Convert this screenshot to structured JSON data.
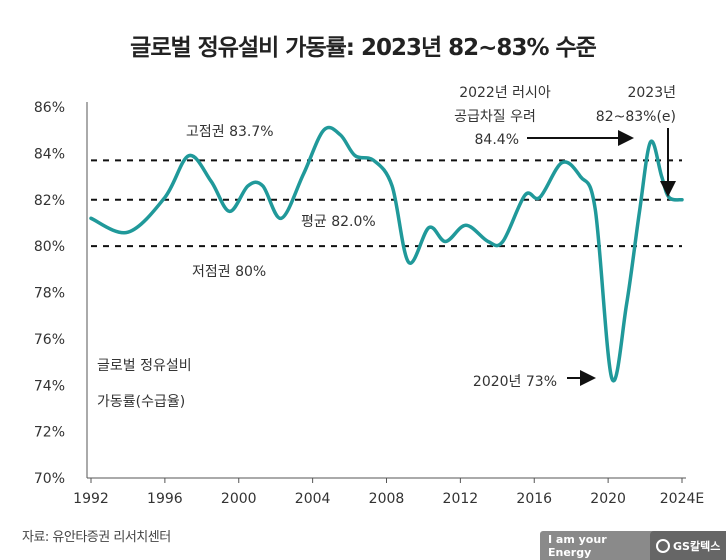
{
  "chart_data": {
    "type": "line",
    "title": "글로벌 정유설비 가동률: 2023년 82~83% 수준",
    "ylabel_lines": [
      "글로벌 정유설비",
      "가동률(수급율)"
    ],
    "xlim": [
      1992,
      2024
    ],
    "ylim": [
      70,
      86
    ],
    "x_ticks": [
      1992,
      1996,
      2000,
      2004,
      2008,
      2012,
      2016,
      2020,
      2024
    ],
    "x_tick_labels": [
      "1992",
      "1996",
      "2000",
      "2004",
      "2008",
      "2012",
      "2016",
      "2020",
      "2024E"
    ],
    "y_ticks": [
      70,
      72,
      74,
      76,
      78,
      80,
      82,
      84,
      86
    ],
    "y_tick_labels": [
      "70%",
      "72%",
      "74%",
      "76%",
      "78%",
      "80%",
      "82%",
      "84%",
      "86%"
    ],
    "grid": false,
    "line_color": "#20999a",
    "series": [
      {
        "x": [
          1992,
          1994,
          1996,
          1997.3,
          1998.5,
          1999.5,
          2000.5,
          2001.3,
          2002.3,
          2003.5,
          2004.6,
          2005.5,
          2006.3,
          2007.3,
          2008.3,
          2009.2,
          2010.3,
          2011.2,
          2012.3,
          2013.5,
          2014.3,
          2015.5,
          2016.3,
          2017.5,
          2018.5,
          2019.3,
          2020.2,
          2021.0,
          2021.7,
          2022.3,
          2022.9,
          2023.3,
          2024
        ],
        "y": [
          81.2,
          80.6,
          82.1,
          83.9,
          82.8,
          81.5,
          82.6,
          82.6,
          81.2,
          83.1,
          85.0,
          84.8,
          83.9,
          83.7,
          82.6,
          79.3,
          80.8,
          80.2,
          80.9,
          80.2,
          80.2,
          82.2,
          82.1,
          83.6,
          83.0,
          81.6,
          74.3,
          77.5,
          81.5,
          84.5,
          83.0,
          82.1,
          82.0
        ]
      }
    ],
    "reference_lines": [
      {
        "value": 83.7,
        "label": "고점권 83.7%"
      },
      {
        "value": 82.0,
        "label": "평균 82.0%"
      },
      {
        "value": 80.0,
        "label": "저점권 80%"
      }
    ],
    "annotations": [
      {
        "lines": [
          "2022년 러시아",
          "공급차질 우려",
          "84.4%"
        ]
      },
      {
        "lines": [
          "2023년",
          "82~83%(e)"
        ]
      },
      {
        "lines": [
          "2020년 73%"
        ]
      }
    ]
  },
  "source": "자료: 유안타증권 리서치센터",
  "logo": {
    "slogan": "I am your Energy",
    "brand": "GS칼텍스"
  }
}
